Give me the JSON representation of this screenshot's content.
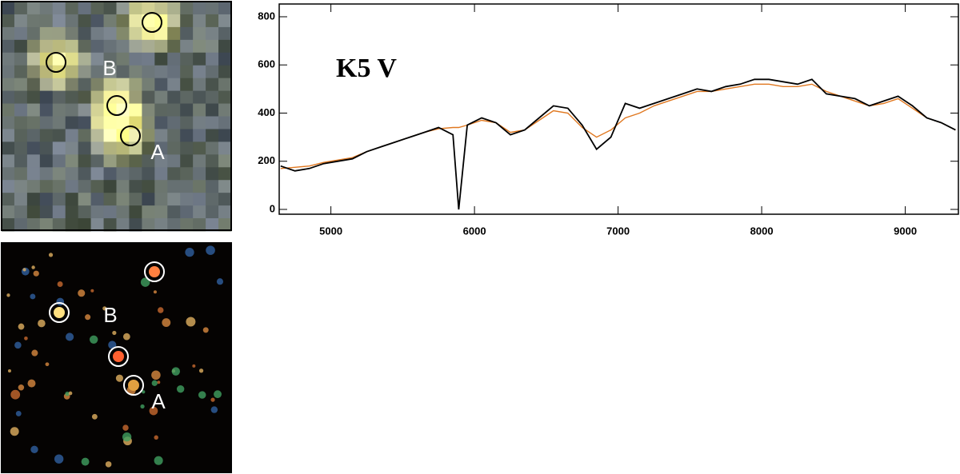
{
  "chart_data": {
    "type": "line",
    "annotation": "K5 V",
    "x": [
      4650,
      4750,
      4850,
      4950,
      5050,
      5150,
      5250,
      5350,
      5450,
      5550,
      5650,
      5750,
      5850,
      5890,
      5950,
      6050,
      6150,
      6250,
      6350,
      6450,
      6550,
      6650,
      6750,
      6850,
      6950,
      7050,
      7150,
      7250,
      7350,
      7450,
      7550,
      7650,
      7750,
      7850,
      7950,
      8050,
      8150,
      8250,
      8350,
      8450,
      8550,
      8650,
      8750,
      8850,
      8950,
      9050,
      9150,
      9250,
      9350
    ],
    "series": [
      {
        "color": "#000000",
        "values": [
          180,
          160,
          170,
          190,
          200,
          210,
          240,
          260,
          280,
          300,
          320,
          340,
          310,
          0,
          350,
          380,
          360,
          310,
          330,
          380,
          430,
          420,
          350,
          250,
          300,
          440,
          420,
          440,
          460,
          480,
          500,
          490,
          510,
          520,
          540,
          540,
          530,
          520,
          540,
          480,
          470,
          460,
          430,
          450,
          470,
          430,
          380,
          360,
          330
        ]
      },
      {
        "color": "#e07820",
        "values": [
          170,
          175,
          180,
          195,
          205,
          215,
          240,
          260,
          280,
          300,
          320,
          335,
          340,
          340,
          350,
          370,
          360,
          320,
          330,
          370,
          410,
          400,
          340,
          300,
          330,
          380,
          400,
          430,
          450,
          470,
          490,
          490,
          500,
          510,
          520,
          520,
          510,
          510,
          520,
          490,
          470,
          450,
          430,
          440,
          460,
          420,
          380,
          360,
          330
        ]
      }
    ],
    "xlim": [
      4640,
      9370
    ],
    "ylim": [
      -20,
      853
    ],
    "xticks": [
      5000,
      6000,
      7000,
      8000,
      9000
    ],
    "yticks": [
      0,
      200,
      400,
      600,
      800
    ]
  },
  "images": [
    {
      "labels": [
        "B",
        "A"
      ]
    },
    {
      "labels": [
        "B",
        "A"
      ]
    }
  ]
}
